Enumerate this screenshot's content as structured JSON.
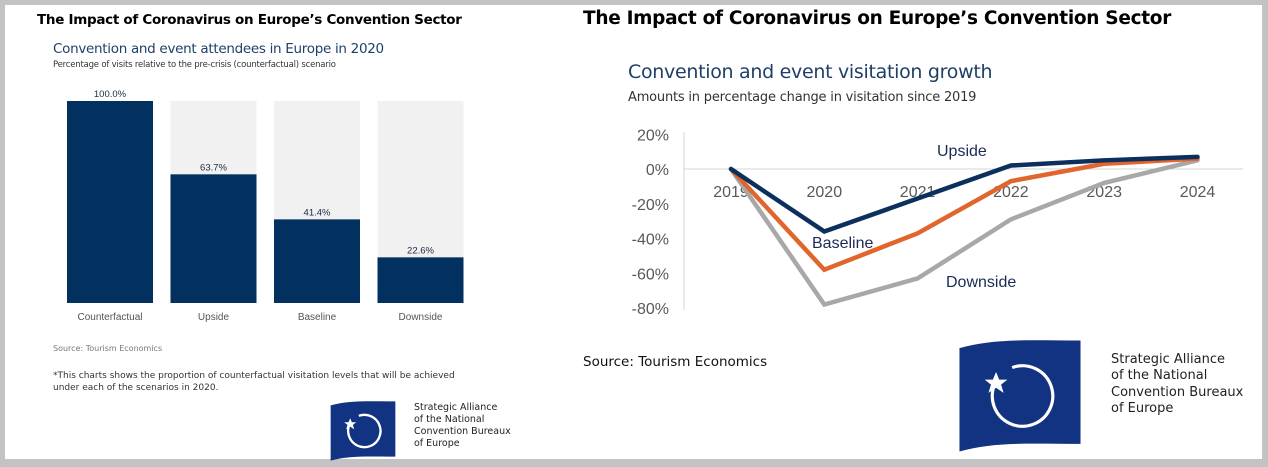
{
  "left_panel": {
    "title": "The Impact of Coronavirus on Europe’s Convention Sector",
    "chart_title": "Convention and event attendees in Europe in 2020",
    "chart_subtitle": "Percentage of visits relative to the  pre-crisis (counterfactual) scenario",
    "source": "Source: Tourism Economics",
    "footnote_line1": "*This charts shows the proportion of counterfactual visitation levels that will be achieved",
    "footnote_line2": "under each of the scenarios in 2020.",
    "logo_lines": [
      "Strategic Alliance",
      "of the National",
      "Convention Bureaux",
      "of Europe"
    ]
  },
  "right_panel": {
    "title": "The Impact of Coronavirus on Europe’s Convention Sector",
    "chart_title": "Convention and event visitation growth",
    "chart_subtitle": "Amounts in percentage change in visitation since 2019",
    "source": "Source: Tourism Economics",
    "logo_lines": [
      "Strategic Alliance",
      "of the National",
      "Convention Bureaux",
      "of Europe"
    ]
  },
  "colors": {
    "navy": "#02305f",
    "bar_background": "#f1f1f1",
    "upside": "#0d2f5d",
    "baseline": "#e0662e",
    "downside": "#a8a8a8",
    "logo_blue": "#123382"
  },
  "chart_data": [
    {
      "type": "bar",
      "title": "Convention and event attendees in Europe in 2020",
      "subtitle": "Percentage of visits relative to the  pre-crisis (counterfactual) scenario",
      "categories": [
        "Counterfactual",
        "Upside",
        "Baseline",
        "Downside"
      ],
      "values": [
        100.0,
        63.7,
        41.4,
        22.6
      ],
      "labels": [
        "100.0%",
        "63.7%",
        "41.4%",
        "22.6%"
      ],
      "xlabel": "",
      "ylabel": "",
      "ylim": [
        0,
        100
      ],
      "grid": false,
      "legend": "none"
    },
    {
      "type": "line",
      "title": "Convention and event visitation growth",
      "subtitle": "Amounts in percentage change in visitation since 2019",
      "x": [
        "2019",
        "2020",
        "2021",
        "2022",
        "2023",
        "2024"
      ],
      "series": [
        {
          "name": "Upside",
          "values": [
            0,
            -36,
            -17,
            2,
            5,
            7
          ]
        },
        {
          "name": "Baseline",
          "values": [
            0,
            -58,
            -37,
            -7,
            3,
            6
          ]
        },
        {
          "name": "Downside",
          "values": [
            0,
            -78,
            -63,
            -29,
            -8,
            5
          ]
        }
      ],
      "yticks": [
        "20%",
        "0%",
        "-20%",
        "-40%",
        "-60%",
        "-80%"
      ],
      "ytick_values": [
        20,
        0,
        -20,
        -40,
        -60,
        -80
      ],
      "ylim": [
        -80,
        20
      ],
      "xlabel": "",
      "ylabel": "",
      "grid": false,
      "legend": "inline labels"
    }
  ]
}
